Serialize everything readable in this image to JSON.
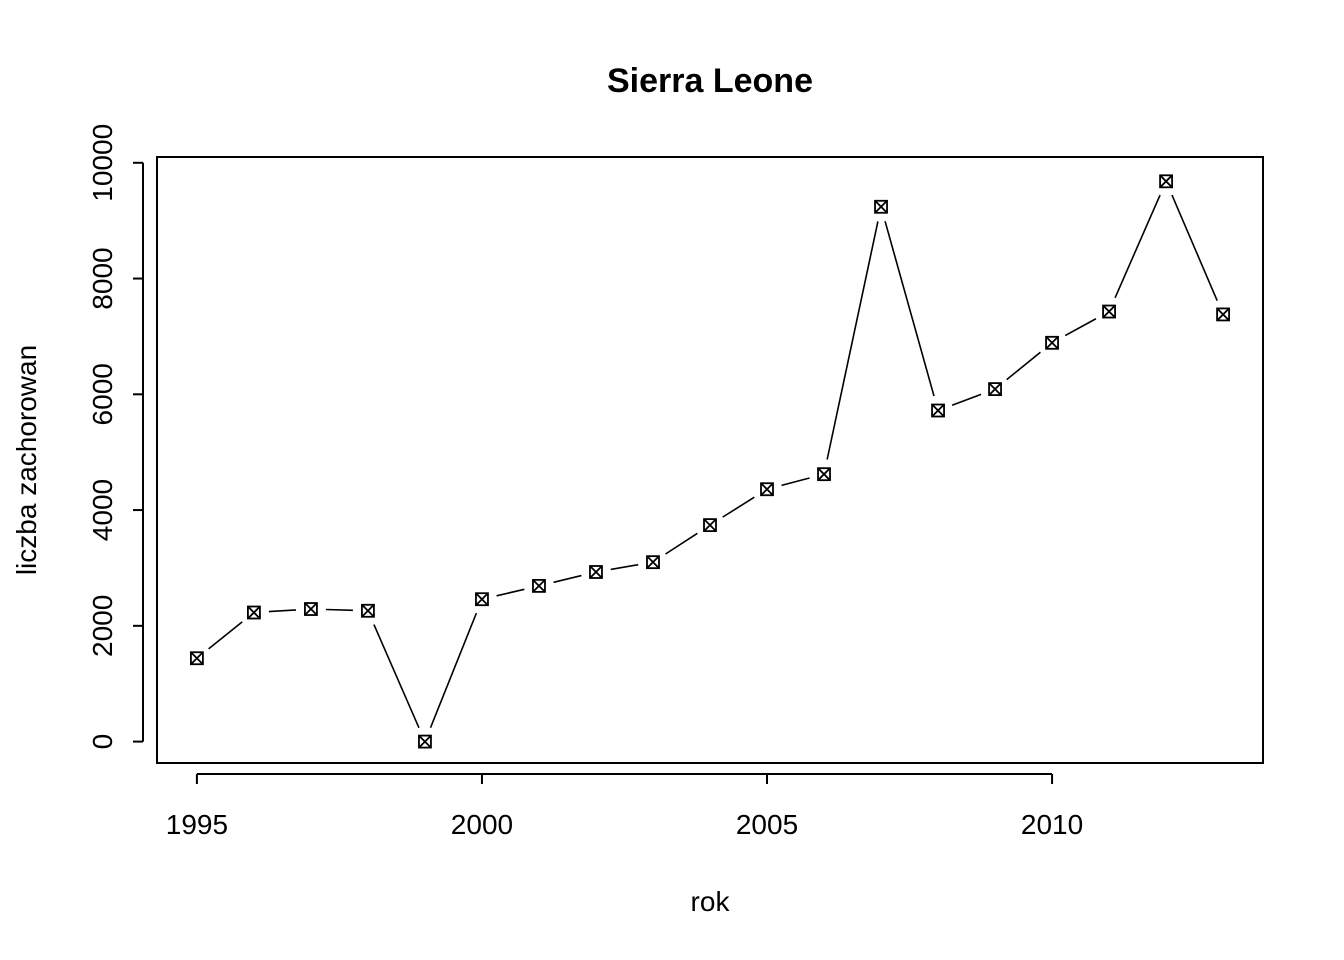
{
  "chart_data": {
    "type": "line",
    "title": "Sierra Leone",
    "xlabel": "rok",
    "ylabel": "liczba zachorowan",
    "x": [
      1995,
      1996,
      1997,
      1998,
      1999,
      2000,
      2001,
      2002,
      2003,
      2004,
      2005,
      2006,
      2007,
      2008,
      2009,
      2010,
      2011,
      2012,
      2013
    ],
    "series": [
      {
        "values": [
          1440,
          2230,
          2290,
          2260,
          0,
          2460,
          2690,
          2930,
          3100,
          3740,
          4360,
          4620,
          9240,
          5720,
          6090,
          6890,
          7430,
          9680,
          7380
        ]
      }
    ],
    "xlim": [
      1994.3,
      2013.7
    ],
    "ylim": [
      -370,
      10100
    ],
    "xticks": [
      1995,
      2000,
      2005,
      2010
    ],
    "xtick_labels": [
      "1995",
      "2000",
      "2005",
      "2010"
    ],
    "yticks": [
      0,
      2000,
      4000,
      6000,
      8000,
      10000
    ],
    "ytick_labels": [
      "0",
      "2000",
      "4000",
      "6000",
      "8000",
      "10000"
    ],
    "marker": "boxed-x",
    "line_style": "solid",
    "grid": false,
    "legend": "none"
  }
}
